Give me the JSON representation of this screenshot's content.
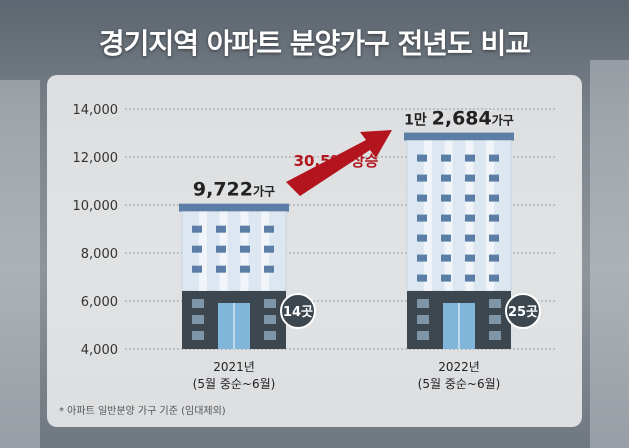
{
  "title": "경기지역 아파트 분양가구 전년도 비교",
  "note": "* 아파트 일반분양 가구 기준 (임대제외)",
  "colors": {
    "building_top": "#dce7f1",
    "building_top_window": "#5a7ea6",
    "building_bottom": "#3c4750",
    "building_bottom_window": "#7f95a8",
    "entrance": "#7fb6d9",
    "arrow": "#b3141e",
    "badge": "#3c4750",
    "grid": "#9aa0a6"
  },
  "chart_data": {
    "type": "bar",
    "title": "경기지역 아파트 분양가구 전년도 비교",
    "xlabel": "",
    "ylabel": "",
    "ylim": [
      4000,
      14000
    ],
    "yticks": [
      "4,000",
      "6,000",
      "8,000",
      "10,000",
      "12,000",
      "14,000"
    ],
    "ytick_values": [
      4000,
      6000,
      8000,
      10000,
      12000,
      14000
    ],
    "grid": true,
    "categories": [
      {
        "year": "2021년",
        "period": "(5월 중순~6월)"
      },
      {
        "year": "2022년",
        "period": "(5월 중순~6월)"
      }
    ],
    "values": [
      9722,
      12684
    ],
    "labels": [
      {
        "num": "9,722",
        "unit": "가구"
      },
      {
        "prefix": "1만 ",
        "num": "2,684",
        "unit": "가구"
      }
    ],
    "badges": [
      "14곳",
      "25곳"
    ],
    "change": {
      "value": "30.5%",
      "text": "상승"
    }
  }
}
